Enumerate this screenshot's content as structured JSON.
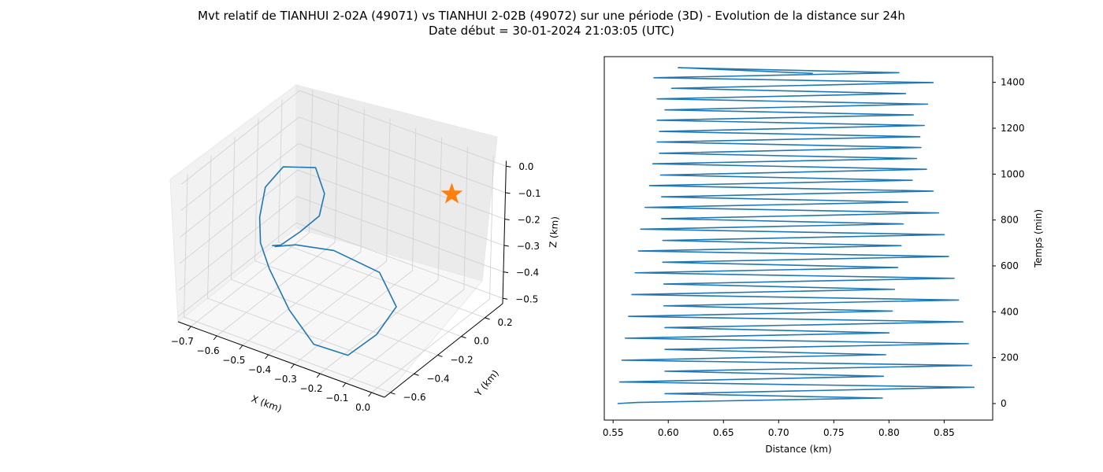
{
  "figure": {
    "title_line1": "Mvt relatif de TIANHUI 2-02A (49071) vs TIANHUI 2-02B (49072) sur une période (3D) - Evolution de la distance sur 24h",
    "title_line2": "Date début = 30-01-2024 21:03:05 (UTC)"
  },
  "chart_data": [
    {
      "type": "line3d",
      "xlabel": "X (km)",
      "ylabel": "Y (km)",
      "zlabel": "Z (km)",
      "xlim": [
        -0.75,
        0.05
      ],
      "ylim": [
        -0.65,
        0.35
      ],
      "zlim": [
        -0.52,
        0.02
      ],
      "xticks": [
        -0.7,
        -0.6,
        -0.5,
        -0.4,
        -0.3,
        -0.2,
        -0.1,
        0.0
      ],
      "xtick_labels": [
        "−0.7",
        "−0.6",
        "−0.5",
        "−0.4",
        "−0.3",
        "−0.2",
        "−0.1",
        "0.0"
      ],
      "yticks": [
        -0.6,
        -0.4,
        -0.2,
        0.0,
        0.2
      ],
      "ytick_labels": [
        "−0.6",
        "−0.4",
        "−0.2",
        "0.0",
        "0.2"
      ],
      "zticks": [
        -0.5,
        -0.4,
        -0.3,
        -0.2,
        -0.1,
        0.0
      ],
      "ztick_labels": [
        "−0.5",
        "−0.4",
        "−0.3",
        "−0.2",
        "−0.1",
        "0.0"
      ],
      "grid": true,
      "series": [
        {
          "color": "#1f77b4",
          "points": [
            [
              -0.52,
              -0.35,
              -0.26
            ],
            [
              -0.47,
              -0.28,
              -0.26
            ],
            [
              -0.35,
              -0.22,
              -0.26
            ],
            [
              -0.19,
              -0.18,
              -0.3
            ],
            [
              -0.1,
              -0.23,
              -0.38
            ],
            [
              -0.12,
              -0.35,
              -0.45
            ],
            [
              -0.17,
              -0.48,
              -0.5
            ],
            [
              -0.28,
              -0.53,
              -0.48
            ],
            [
              -0.4,
              -0.48,
              -0.41
            ],
            [
              -0.52,
              -0.39,
              -0.33
            ],
            [
              -0.57,
              -0.36,
              -0.26
            ],
            [
              -0.58,
              -0.35,
              -0.17
            ],
            [
              -0.57,
              -0.33,
              -0.06
            ],
            [
              -0.53,
              -0.27,
              0.01
            ],
            [
              -0.45,
              -0.17,
              0.0
            ],
            [
              -0.4,
              -0.2,
              -0.07
            ],
            [
              -0.4,
              -0.24,
              -0.14
            ],
            [
              -0.45,
              -0.29,
              -0.2
            ],
            [
              -0.5,
              -0.34,
              -0.25
            ],
            [
              -0.53,
              -0.35,
              -0.26
            ]
          ]
        },
        {
          "color": "#ff7f0e",
          "marker": "star",
          "points": [
            [
              0.0,
              0.0,
              0.0
            ]
          ]
        }
      ]
    },
    {
      "type": "line",
      "xlabel": "Distance (km)",
      "ylabel": "Temps (min)",
      "xlim": [
        0.542,
        0.894
      ],
      "ylim": [
        -72,
        1512
      ],
      "xticks": [
        0.55,
        0.6,
        0.65,
        0.7,
        0.75,
        0.8,
        0.85
      ],
      "xtick_labels": [
        "0.55",
        "0.60",
        "0.65",
        "0.70",
        "0.75",
        "0.80",
        "0.85"
      ],
      "yticks": [
        0,
        200,
        400,
        600,
        800,
        1000,
        1200,
        1400
      ],
      "ytick_labels": [
        "0",
        "200",
        "400",
        "600",
        "800",
        "1000",
        "1200",
        "1400"
      ],
      "grid": false,
      "series": [
        {
          "color": "#1f77b4",
          "points": [
            [
              0.554,
              0
            ],
            [
              0.572,
              5
            ],
            [
              0.794,
              24
            ],
            [
              0.597,
              43
            ],
            [
              0.877,
              71
            ],
            [
              0.556,
              94
            ],
            [
              0.795,
              119
            ],
            [
              0.597,
              141
            ],
            [
              0.875,
              166
            ],
            [
              0.558,
              189
            ],
            [
              0.797,
              213
            ],
            [
              0.597,
              236
            ],
            [
              0.872,
              261
            ],
            [
              0.561,
              285
            ],
            [
              0.8,
              308
            ],
            [
              0.597,
              331
            ],
            [
              0.867,
              356
            ],
            [
              0.564,
              380
            ],
            [
              0.803,
              403
            ],
            [
              0.596,
              426
            ],
            [
              0.863,
              451
            ],
            [
              0.567,
              475
            ],
            [
              0.805,
              498
            ],
            [
              0.596,
              521
            ],
            [
              0.859,
              546
            ],
            [
              0.57,
              570
            ],
            [
              0.808,
              593
            ],
            [
              0.595,
              616
            ],
            [
              0.854,
              641
            ],
            [
              0.573,
              665
            ],
            [
              0.811,
              688
            ],
            [
              0.595,
              711
            ],
            [
              0.85,
              736
            ],
            [
              0.575,
              760
            ],
            [
              0.813,
              783
            ],
            [
              0.594,
              806
            ],
            [
              0.845,
              831
            ],
            [
              0.579,
              855
            ],
            [
              0.817,
              878
            ],
            [
              0.594,
              901
            ],
            [
              0.84,
              926
            ],
            [
              0.583,
              950
            ],
            [
              0.821,
              973
            ],
            [
              0.593,
              996
            ],
            [
              0.834,
              1021
            ],
            [
              0.586,
              1045
            ],
            [
              0.825,
              1068
            ],
            [
              0.592,
              1091
            ],
            [
              0.829,
              1116
            ],
            [
              0.59,
              1140
            ],
            [
              0.828,
              1163
            ],
            [
              0.592,
              1186
            ],
            [
              0.832,
              1212
            ],
            [
              0.59,
              1235
            ],
            [
              0.822,
              1258
            ],
            [
              0.597,
              1280
            ],
            [
              0.835,
              1305
            ],
            [
              0.59,
              1328
            ],
            [
              0.815,
              1351
            ],
            [
              0.603,
              1374
            ],
            [
              0.84,
              1399
            ],
            [
              0.587,
              1420
            ],
            [
              0.809,
              1442
            ],
            [
              0.609,
              1464
            ],
            [
              0.731,
              1439
            ]
          ]
        }
      ]
    }
  ]
}
